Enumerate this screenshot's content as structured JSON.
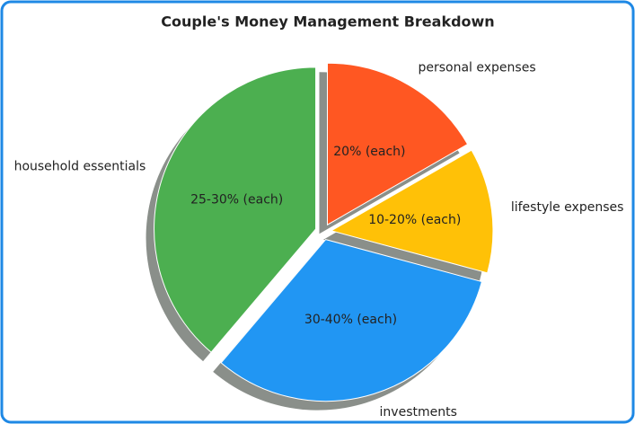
{
  "chart_data": {
    "type": "pie",
    "title": "Couple's Money Management Breakdown",
    "categories": [
      "personal expenses",
      "lifestyle expenses",
      "investments",
      "household essentials"
    ],
    "values": [
      16.7,
      12.5,
      32,
      38.8
    ],
    "annotations": [
      "20% (each)",
      "10-20% (each)",
      "30-40% (each)",
      "25-30% (each)"
    ],
    "colors": [
      "#ff5722",
      "#ffc107",
      "#2196f3",
      "#4caf50"
    ],
    "start_angle": 90,
    "direction": "clockwise",
    "exploded": true,
    "shadow": true
  }
}
